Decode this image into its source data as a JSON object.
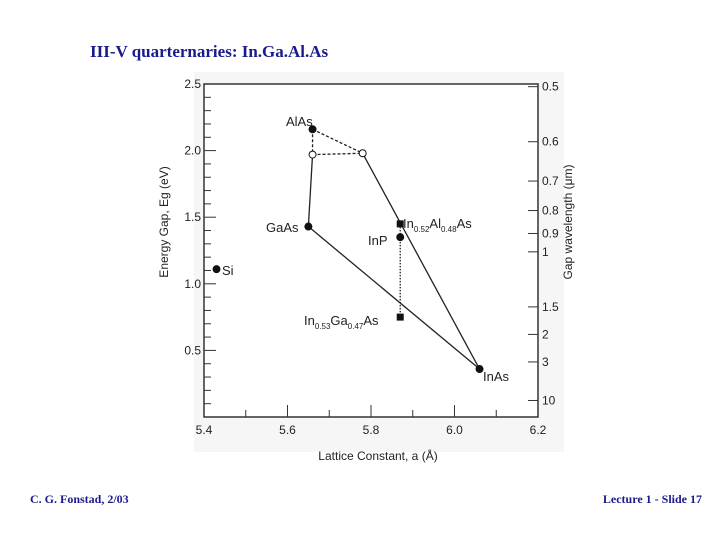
{
  "title": "III-V quarternaries: In.Ga.Al.As",
  "footer": {
    "left": "C. G. Fonstad, 2/03",
    "right": "Lecture 1 - Slide 17"
  },
  "chart_data": {
    "type": "scatter",
    "xlabel": "Lattice Constant, a (Å)",
    "ylabel": "Energy Gap, Eg (eV)",
    "y2label": "Gap wavelength (μm)",
    "xlim": [
      5.4,
      6.2
    ],
    "ylim": [
      0,
      2.5
    ],
    "x_ticks": [
      "5.4",
      "5.6",
      "5.8",
      "6.0",
      "6.2"
    ],
    "y_ticks": [
      "0.5",
      "1.0",
      "1.5",
      "2.0",
      "2.5"
    ],
    "y2_ticks": [
      "0.5",
      "0.6",
      "0.7",
      "0.8",
      "0.9",
      "1",
      "1.5",
      "2",
      "3",
      "10"
    ],
    "points": [
      {
        "name": "AlAs",
        "x": 5.66,
        "y": 2.16,
        "filled": true
      },
      {
        "name": "GaAs",
        "x": 5.65,
        "y": 1.43,
        "filled": true
      },
      {
        "name": "InAs",
        "x": 6.06,
        "y": 0.36,
        "filled": true
      },
      {
        "name": "InP",
        "x": 5.87,
        "y": 1.35,
        "filled": true
      },
      {
        "name": "Si",
        "x": 5.43,
        "y": 1.11,
        "filled": true
      },
      {
        "name": "In0.52Al0.48As",
        "x": 5.87,
        "y": 1.45,
        "filled": true,
        "square": true
      },
      {
        "name": "In0.53Ga0.47As",
        "x": 5.87,
        "y": 0.75,
        "filled": true,
        "square": true
      },
      {
        "name": "",
        "x": 5.66,
        "y": 1.97,
        "filled": false
      },
      {
        "name": "",
        "x": 5.78,
        "y": 1.98,
        "filled": false
      }
    ],
    "labels": {
      "AlAs": "AlAs",
      "GaAs": "GaAs",
      "InAs": "InAs",
      "InP": "InP",
      "Si": "Si",
      "inalas_main": "In",
      "inalas_sub1": "0.52",
      "inalas_mid": "Al",
      "inalas_sub2": "0.48",
      "inalas_end": "As",
      "ingaas_main": "In",
      "ingaas_sub1": "0.53",
      "ingaas_mid": "Ga",
      "ingaas_sub2": "0.47",
      "ingaas_end": "As"
    },
    "lines": [
      {
        "from": [
          5.66,
          2.16
        ],
        "to": [
          5.66,
          1.97
        ],
        "style": "dashed"
      },
      {
        "from": [
          5.66,
          2.16
        ],
        "to": [
          5.78,
          1.98
        ],
        "style": "dashed"
      },
      {
        "from": [
          5.66,
          1.97
        ],
        "to": [
          5.78,
          1.98
        ],
        "style": "dashed"
      },
      {
        "from": [
          5.66,
          1.97
        ],
        "to": [
          5.65,
          1.43
        ],
        "style": "solid"
      },
      {
        "from": [
          5.78,
          1.98
        ],
        "to": [
          6.06,
          0.36
        ],
        "style": "solid"
      },
      {
        "from": [
          5.65,
          1.43
        ],
        "to": [
          6.06,
          0.36
        ],
        "style": "solid"
      },
      {
        "from": [
          5.87,
          1.45
        ],
        "to": [
          5.87,
          0.75
        ],
        "style": "dotted"
      }
    ],
    "grid": false
  }
}
